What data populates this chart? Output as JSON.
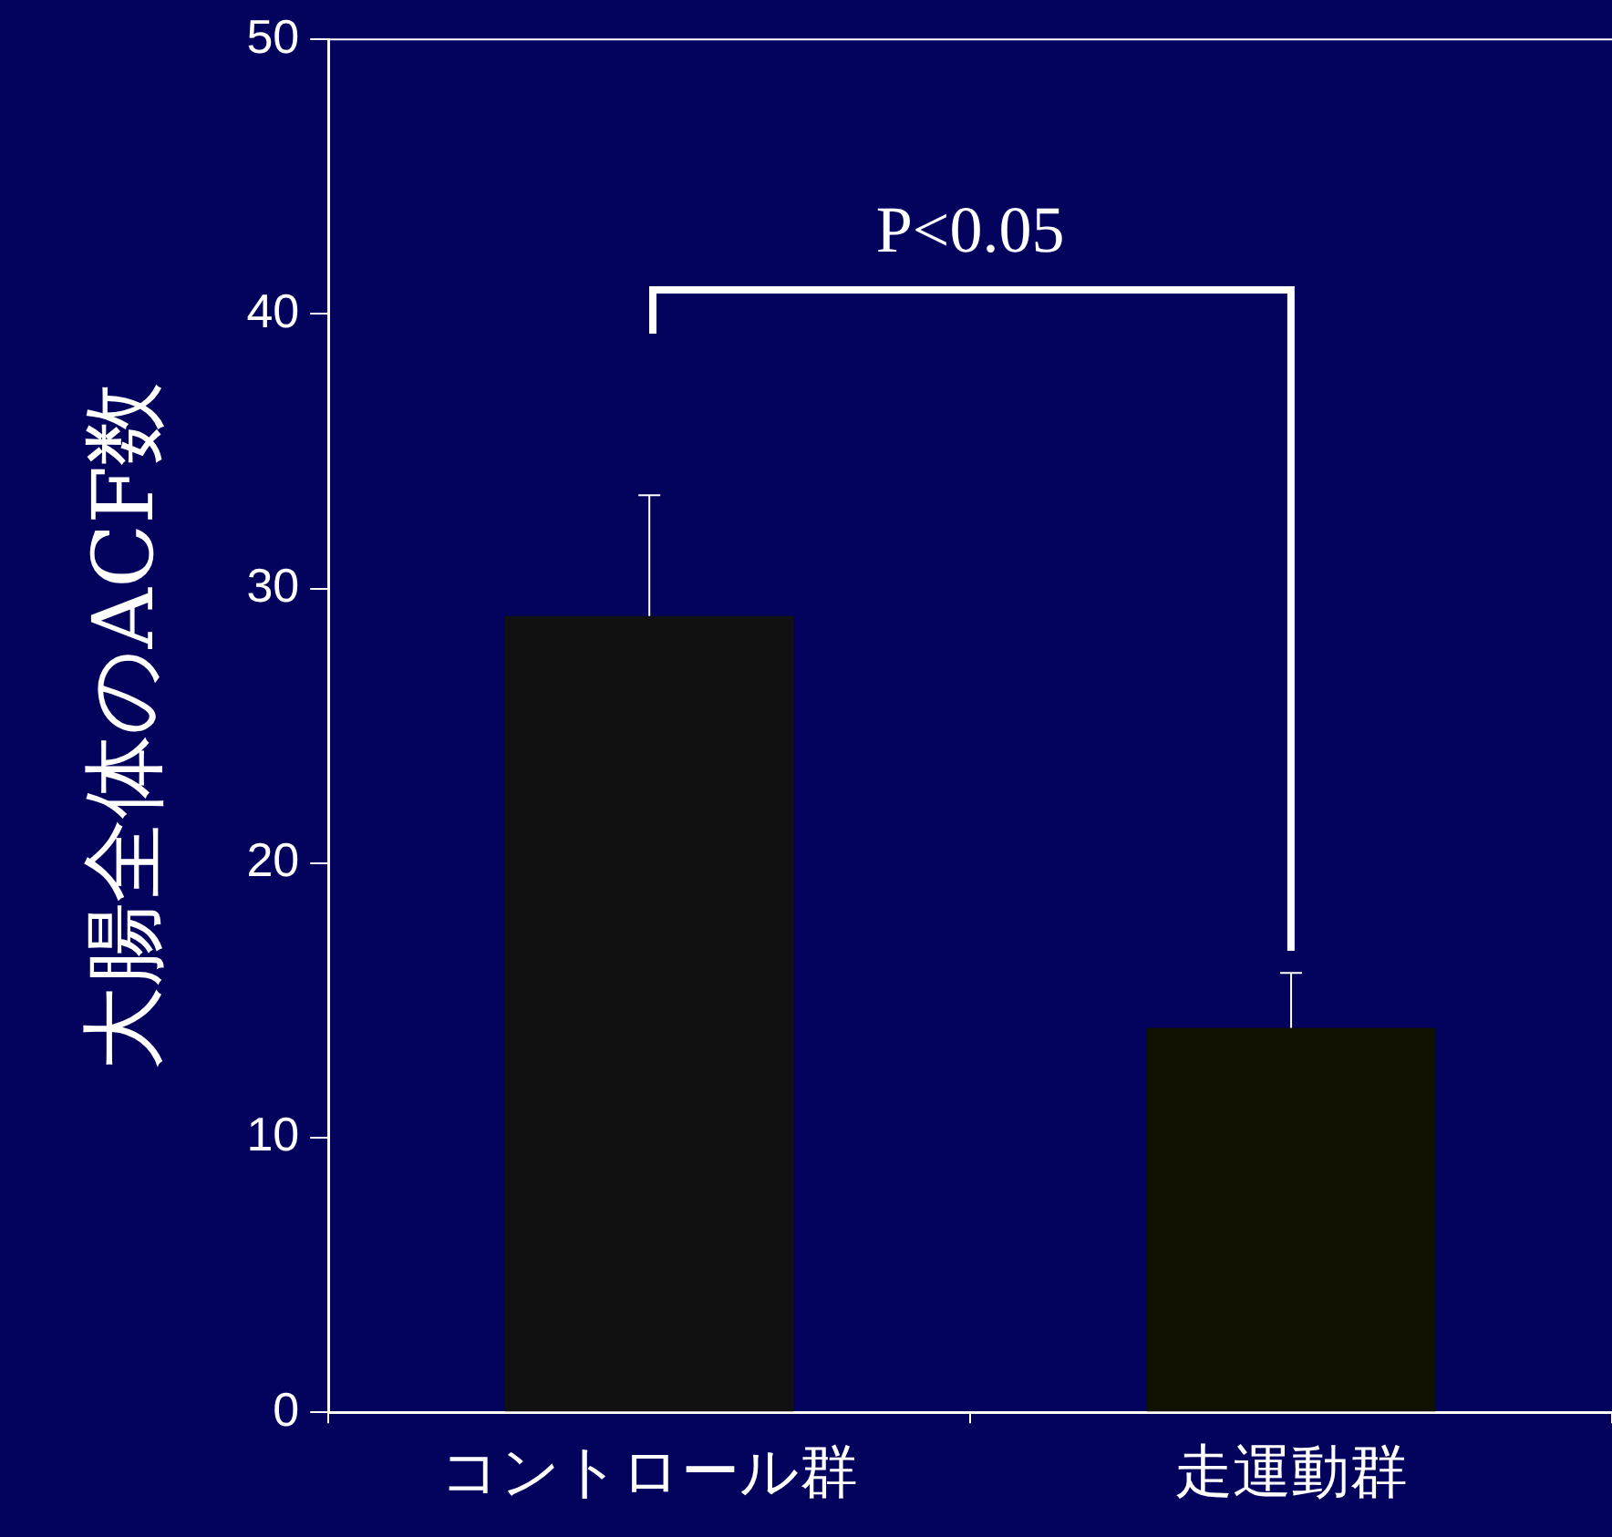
{
  "chart_data": {
    "type": "bar",
    "ylabel": "大腸全体のACF数",
    "categories": [
      "コントロール群",
      "走運動群"
    ],
    "values": [
      29,
      14
    ],
    "colors": [
      "#111111",
      "#111100"
    ],
    "errors": [
      [
        29,
        33.4
      ],
      [
        14,
        16
      ]
    ],
    "ylim": [
      0,
      50
    ],
    "yticks": [
      0,
      10,
      20,
      30,
      40,
      50
    ],
    "grid": false,
    "legend": false,
    "annotations": [
      "P<0.05"
    ]
  }
}
